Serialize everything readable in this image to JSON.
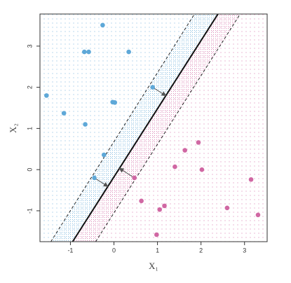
{
  "chart_data": {
    "type": "scatter",
    "x_label": "X₁",
    "y_label": "X₂",
    "xlim": [
      -1.7,
      3.52
    ],
    "ylim": [
      -1.75,
      3.78
    ],
    "xticks": [
      -1,
      0,
      1,
      2,
      3
    ],
    "yticks": [
      -1,
      0,
      1,
      2,
      3
    ],
    "series": [
      {
        "color": "#5ea8d8",
        "x": [
          -0.26,
          -0.68,
          -0.58,
          0.34,
          -1.55,
          0.89,
          -1.15,
          -0.03,
          0.02,
          -0.66,
          -0.23,
          -0.45
        ],
        "y": [
          3.51,
          2.86,
          2.86,
          2.86,
          1.8,
          2.0,
          1.37,
          1.64,
          1.63,
          1.1,
          0.36,
          -0.2
        ]
      },
      {
        "color": "#d067a3",
        "x": [
          0.47,
          1.94,
          1.63,
          1.4,
          2.02,
          3.15,
          0.63,
          1.16,
          1.05,
          2.6,
          3.31,
          0.98
        ],
        "y": [
          -0.2,
          0.66,
          0.47,
          0.07,
          0.0,
          -0.24,
          -0.76,
          -0.88,
          -0.97,
          -0.93,
          -1.1,
          -1.58
        ]
      }
    ],
    "lines": [
      {
        "style": "dashed",
        "x": [
          -1.45,
          1.85
        ],
        "y": [
          -1.75,
          3.78
        ]
      },
      {
        "style": "solid",
        "x": [
          -0.95,
          2.39
        ],
        "y": [
          -1.75,
          3.78
        ]
      },
      {
        "style": "dashed",
        "x": [
          -0.42,
          2.9
        ],
        "y": [
          -1.75,
          3.78
        ]
      }
    ]
  }
}
